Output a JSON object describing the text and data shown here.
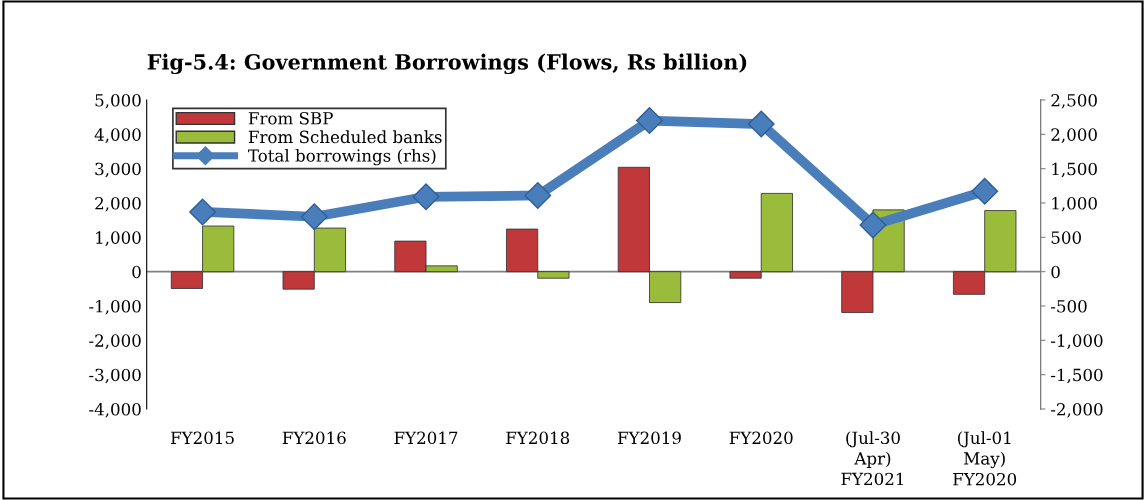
{
  "chart_data": {
    "type": "bar",
    "title": "Fig-5.4: Government Borrowings (Flows, Rs billion)",
    "categories": [
      "FY2015",
      "FY2016",
      "FY2017",
      "FY2018",
      "FY2019",
      "FY2020",
      "(Jul-30\nApr)\nFY2021",
      "(Jul-01\nMay)\nFY2020"
    ],
    "series": [
      {
        "name": "From SBP",
        "color": "#c0383a",
        "values": [
          -490,
          -510,
          890,
          1240,
          3040,
          -190,
          -1190,
          -660
        ]
      },
      {
        "name": "From Scheduled banks",
        "color": "#9bbb3b",
        "values": [
          1330,
          1270,
          170,
          -190,
          -900,
          2280,
          1800,
          1780
        ]
      },
      {
        "name": "Total borrowings (rhs)",
        "type": "line",
        "axis": "y2",
        "color": "#4a7ebb",
        "marker": "diamond",
        "values": [
          870,
          800,
          1090,
          1110,
          2200,
          2150,
          680,
          1170
        ]
      }
    ],
    "ylim": [
      -4000,
      5000
    ],
    "yticks": [
      {
        "value": -4000,
        "label": "-4,000"
      },
      {
        "value": -3000,
        "label": "-3,000"
      },
      {
        "value": -2000,
        "label": "-2,000"
      },
      {
        "value": -1000,
        "label": "-1,000"
      },
      0,
      {
        "value": 1000,
        "label": "1,000"
      },
      {
        "value": 2000,
        "label": "2,000"
      },
      {
        "value": 3000,
        "label": "3,000"
      },
      {
        "value": 4000,
        "label": "4,000"
      },
      {
        "value": 5000,
        "label": "5,000"
      }
    ],
    "y2lim": [
      -2000,
      2500
    ],
    "y2ticks": [
      {
        "value": -2000,
        "label": "-2,000"
      },
      {
        "value": -1500,
        "label": "-1,500"
      },
      {
        "value": -1000,
        "label": "-1,000"
      },
      -500,
      0,
      500,
      {
        "value": 1000,
        "label": "1,000"
      },
      {
        "value": 1500,
        "label": "1,500"
      },
      {
        "value": 2000,
        "label": "2,000"
      },
      {
        "value": 2500,
        "label": "2,500"
      }
    ],
    "ref_lines": [
      {
        "axis": "y",
        "value": 0,
        "color": "#808080"
      }
    ],
    "legend": "top left",
    "grid": false
  }
}
